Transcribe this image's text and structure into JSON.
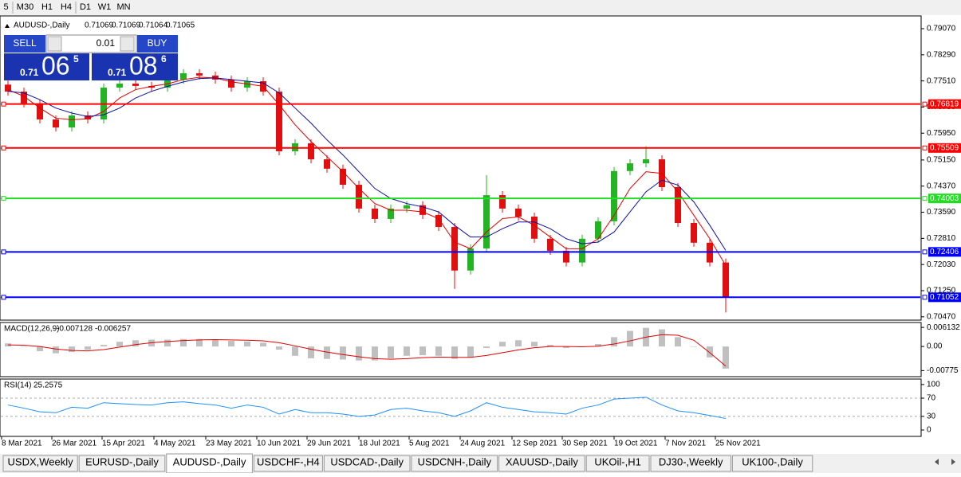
{
  "toolbar": {
    "timeframes": [
      "5",
      "M30",
      "H1",
      "H4",
      "D1",
      "W1",
      "MN"
    ]
  },
  "trade_panel": {
    "sell": "SELL",
    "buy": "BUY",
    "lot": 0.01,
    "bid": {
      "big": "0.71",
      "pips": "06",
      "frac": "5"
    },
    "ask": {
      "big": "0.71",
      "pips": "08",
      "frac": "6"
    }
  },
  "chart_data": [
    {
      "type": "candlestick",
      "title": "AUDUSD-,Daily",
      "ohlc": [
        0.71069,
        0.71069,
        0.71064,
        0.71065
      ],
      "open": [
        0.774,
        0.7719,
        0.7684,
        0.7636,
        0.7612,
        0.7648,
        0.7636,
        0.7731,
        0.7743,
        0.7736,
        0.7731,
        0.7755,
        0.7774,
        0.7767,
        0.7755,
        0.7731,
        0.775,
        0.7719,
        0.7541,
        0.7565,
        0.7517,
        0.7489,
        0.7441,
        0.737,
        0.7339,
        0.737,
        0.738,
        0.7351,
        0.7315,
        0.7185,
        0.7251,
        0.741,
        0.737,
        0.7346,
        0.728,
        0.7244,
        0.7209,
        0.728,
        0.7332,
        0.7482,
        0.7505,
        0.7517,
        0.7434,
        0.7327,
        0.7268,
        0.7209
      ],
      "high": [
        0.7752,
        0.7731,
        0.7696,
        0.7648,
        0.766,
        0.766,
        0.7743,
        0.7755,
        0.7755,
        0.7748,
        0.7767,
        0.7786,
        0.7786,
        0.7779,
        0.7767,
        0.7762,
        0.7762,
        0.7731,
        0.7577,
        0.7577,
        0.7529,
        0.7501,
        0.7453,
        0.7382,
        0.7382,
        0.7392,
        0.7392,
        0.7363,
        0.7327,
        0.7263,
        0.747,
        0.7422,
        0.7382,
        0.7358,
        0.7292,
        0.7256,
        0.7292,
        0.7344,
        0.7494,
        0.7517,
        0.7556,
        0.7529,
        0.7446,
        0.7339,
        0.728,
        0.7221
      ],
      "low": [
        0.7707,
        0.7672,
        0.7624,
        0.76,
        0.76,
        0.7624,
        0.7624,
        0.7719,
        0.7724,
        0.7719,
        0.7719,
        0.7743,
        0.7755,
        0.7743,
        0.7719,
        0.7719,
        0.7707,
        0.7529,
        0.7529,
        0.7505,
        0.7477,
        0.7429,
        0.7358,
        0.7327,
        0.7327,
        0.7358,
        0.7339,
        0.7303,
        0.713,
        0.7173,
        0.7239,
        0.7358,
        0.7334,
        0.7268,
        0.7232,
        0.7197,
        0.7197,
        0.7268,
        0.732,
        0.747,
        0.7493,
        0.7422,
        0.7315,
        0.7256,
        0.7197,
        0.706
      ],
      "close": [
        0.7719,
        0.7684,
        0.7636,
        0.7612,
        0.7648,
        0.7636,
        0.7731,
        0.7743,
        0.7736,
        0.7731,
        0.7755,
        0.7774,
        0.7767,
        0.7755,
        0.7731,
        0.775,
        0.7719,
        0.7541,
        0.7565,
        0.7517,
        0.7489,
        0.7441,
        0.737,
        0.7339,
        0.737,
        0.738,
        0.7351,
        0.7315,
        0.7185,
        0.7251,
        0.741,
        0.737,
        0.7346,
        0.728,
        0.7244,
        0.7209,
        0.728,
        0.7332,
        0.7482,
        0.7505,
        0.7517,
        0.7434,
        0.7327,
        0.7268,
        0.7209,
        0.71065
      ],
      "up_color": "#22b422",
      "down_color": "#e01010",
      "moving_averages": [
        {
          "color": "#e00000",
          "values": [
            0.7725,
            0.7705,
            0.767,
            0.764,
            0.7635,
            0.7638,
            0.766,
            0.77,
            0.7725,
            0.7735,
            0.7742,
            0.7755,
            0.7762,
            0.776,
            0.7748,
            0.7742,
            0.7735,
            0.768,
            0.762,
            0.757,
            0.7525,
            0.748,
            0.743,
            0.7385,
            0.7365,
            0.7365,
            0.736,
            0.734,
            0.727,
            0.725,
            0.73,
            0.734,
            0.7345,
            0.732,
            0.7285,
            0.725,
            0.725,
            0.728,
            0.735,
            0.743,
            0.748,
            0.7475,
            0.742,
            0.735,
            0.728,
            0.72
          ]
        },
        {
          "color": "#1010a0",
          "values": [
            0.772,
            0.7715,
            0.7695,
            0.767,
            0.7655,
            0.7645,
            0.765,
            0.767,
            0.77,
            0.772,
            0.7735,
            0.7748,
            0.7758,
            0.776,
            0.7755,
            0.775,
            0.7745,
            0.7715,
            0.767,
            0.7625,
            0.7575,
            0.753,
            0.748,
            0.743,
            0.74,
            0.7385,
            0.7375,
            0.736,
            0.732,
            0.7285,
            0.7285,
            0.731,
            0.733,
            0.733,
            0.731,
            0.728,
            0.7265,
            0.727,
            0.73,
            0.736,
            0.742,
            0.7455,
            0.744,
            0.739,
            0.732,
            0.7245
          ]
        }
      ],
      "levels": [
        {
          "value": 0.76819,
          "color": "#ff0000"
        },
        {
          "value": 0.75509,
          "color": "#ff0000"
        },
        {
          "value": 0.74003,
          "color": "#22dd22"
        },
        {
          "value": 0.72406,
          "color": "#0000ff"
        },
        {
          "value": 0.71052,
          "color": "#0000ff"
        }
      ],
      "ylim": [
        0.7037,
        0.7945
      ],
      "yticks": [
        {
          "value": 0.7907,
          "label": "0.79070"
        },
        {
          "value": 0.7829,
          "label": "0.78290"
        },
        {
          "value": 0.7751,
          "label": "0.77510"
        },
        {
          "value": 0.7673,
          "label": "0.76730"
        },
        {
          "value": 0.7595,
          "label": "0.75950"
        },
        {
          "value": 0.7515,
          "label": "0.75150"
        },
        {
          "value": 0.7437,
          "label": "0.74370"
        },
        {
          "value": 0.7359,
          "label": "0.73590"
        },
        {
          "value": 0.7281,
          "label": "0.72810"
        },
        {
          "value": 0.7203,
          "label": "0.72030"
        },
        {
          "value": 0.7125,
          "label": "0.71250"
        },
        {
          "value": 0.7047,
          "label": "0.70470"
        }
      ],
      "xlim": [
        -0.5,
        57.25
      ],
      "xticks": [
        {
          "value": -0.4,
          "label": "8 Mar 2021"
        },
        {
          "value": 2.75,
          "label": "26 Mar 2021"
        },
        {
          "value": 5.9,
          "label": "15 Apr 2021"
        },
        {
          "value": 9.15,
          "label": "4 May 2021"
        },
        {
          "value": 12.4,
          "label": "23 May 2021"
        },
        {
          "value": 15.6,
          "label": "10 Jun 2021"
        },
        {
          "value": 18.75,
          "label": "29 Jun 2021"
        },
        {
          "value": 22,
          "label": "18 Jul 2021"
        },
        {
          "value": 25.15,
          "label": "5 Aug 2021"
        },
        {
          "value": 28.35,
          "label": "24 Aug 2021"
        },
        {
          "value": 31.6,
          "label": "12 Sep 2021"
        },
        {
          "value": 34.75,
          "label": "30 Sep 2021"
        },
        {
          "value": 38,
          "label": "19 Oct 2021"
        },
        {
          "value": 41.2,
          "label": "7 Nov 2021"
        },
        {
          "value": 44.35,
          "label": "25 Nov 2021"
        }
      ]
    },
    {
      "type": "macd",
      "title": "MACD(12,26,9)",
      "main_value": -0.007128,
      "signal_value": -0.006257,
      "histogram": [
        0.001,
        0.0,
        -0.0015,
        -0.0022,
        -0.0018,
        -0.001,
        0.0005,
        0.0015,
        0.002,
        0.0022,
        0.0022,
        0.0024,
        0.0024,
        0.0022,
        0.0018,
        0.0016,
        0.0012,
        -0.001,
        -0.003,
        -0.0038,
        -0.004,
        -0.0042,
        -0.0045,
        -0.0045,
        -0.0038,
        -0.003,
        -0.0028,
        -0.003,
        -0.004,
        -0.0035,
        -0.0005,
        0.0015,
        0.002,
        0.0015,
        0.0005,
        -0.0005,
        -0.0002,
        0.0008,
        0.003,
        0.005,
        0.006,
        0.0055,
        0.003,
        0.0,
        -0.0035,
        -0.0071
      ],
      "signal": [
        0.0005,
        0.0004,
        0.0,
        -0.0008,
        -0.0013,
        -0.0014,
        -0.001,
        -0.0002,
        0.0006,
        0.0012,
        0.0016,
        0.0019,
        0.0021,
        0.0022,
        0.0021,
        0.002,
        0.0018,
        0.0012,
        0.0002,
        -0.0009,
        -0.0018,
        -0.0026,
        -0.0033,
        -0.0039,
        -0.0041,
        -0.0039,
        -0.0036,
        -0.0034,
        -0.0035,
        -0.0035,
        -0.0029,
        -0.002,
        -0.0011,
        -0.0004,
        0.0,
        0.0,
        -0.0001,
        0.0001,
        0.0008,
        0.0018,
        0.003,
        0.0038,
        0.0036,
        0.002,
        -0.002,
        -0.0063
      ],
      "histogram_color": "#c0c0c0",
      "signal_color": "#e00000",
      "ylim": [
        -0.0097,
        0.0077
      ],
      "yticks": [
        0.006132,
        {
          "value": 0,
          "label": "0.00"
        },
        -0.00775
      ]
    },
    {
      "type": "rsi",
      "title": "RSI(14)",
      "value": 25.2575,
      "color": "#1e90ff",
      "values": [
        55,
        48,
        40,
        38,
        50,
        48,
        60,
        58,
        56,
        55,
        60,
        62,
        58,
        55,
        48,
        55,
        50,
        35,
        45,
        38,
        38,
        35,
        30,
        33,
        45,
        48,
        42,
        38,
        30,
        42,
        60,
        50,
        45,
        40,
        38,
        35,
        48,
        55,
        68,
        70,
        72,
        55,
        42,
        38,
        32,
        25.2575
      ],
      "ylim": [
        -14,
        112
      ],
      "yticks": [
        100,
        70,
        30,
        0
      ]
    }
  ],
  "tabs": {
    "items": [
      "USDX,Weekly",
      "EURUSD-,Daily",
      "AUDUSD-,Daily",
      "USDCHF-,H4",
      "USDCAD-,Daily",
      "USDCNH-,Daily",
      "XAUUSD-,Daily",
      "UKOil-,H1",
      "DJ30-,Weekly",
      "UK100-,Daily"
    ],
    "active": 2
  }
}
